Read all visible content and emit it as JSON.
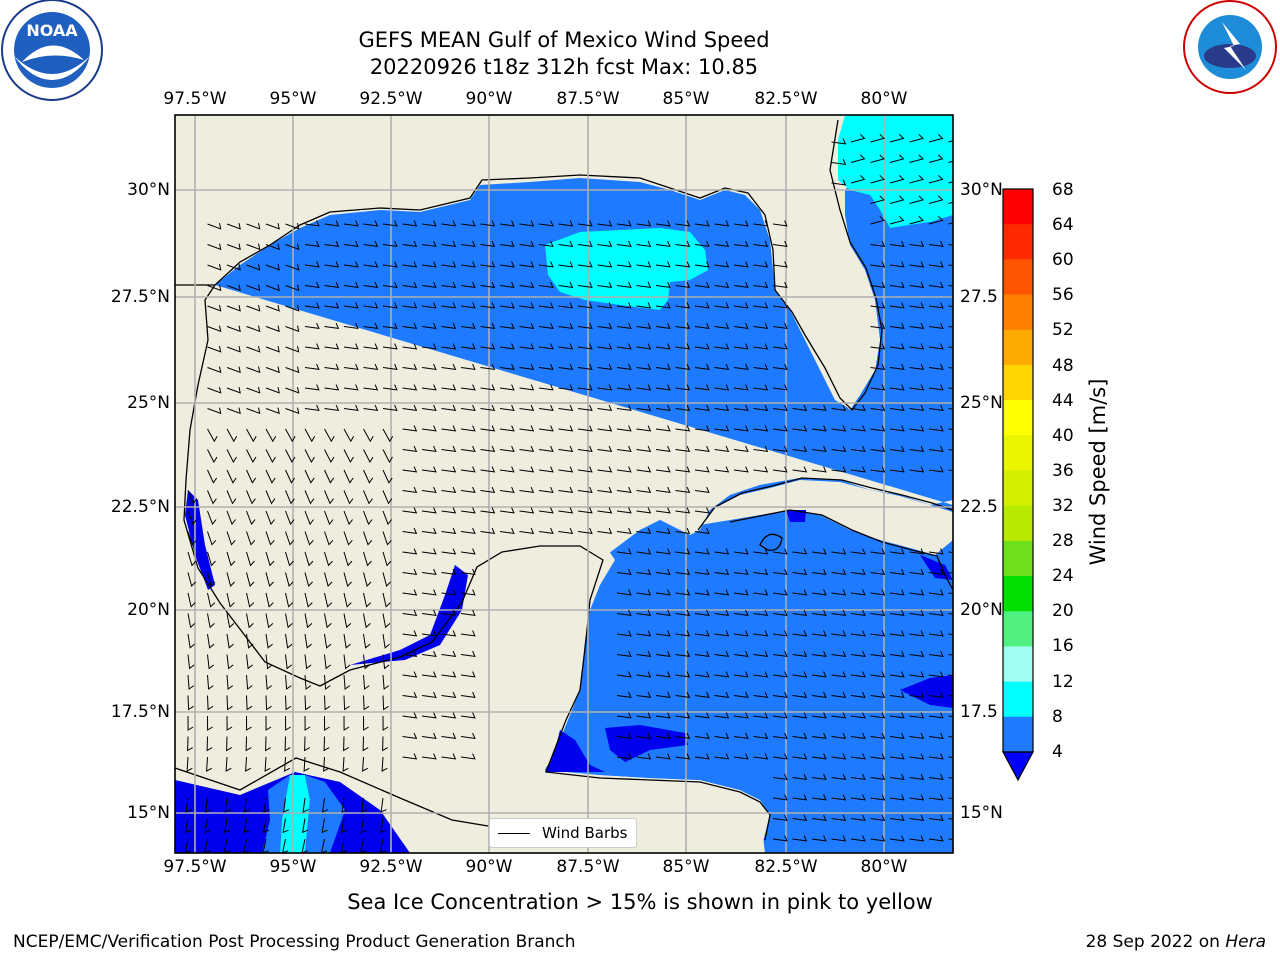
{
  "title": {
    "line1": "GEFS MEAN Gulf of Mexico Wind Speed",
    "line2": "20220926 t18z 312h fcst   Max: 10.85"
  },
  "logos": {
    "left": "NOAA",
    "left_ring_text": "NATIONAL OCEANIC AND ATMOSPHERIC ADMINISTRATION · U.S. DEPARTMENT OF COMMERCE",
    "right_ring_text": "NATIONAL WEATHER SERVICE"
  },
  "axes": {
    "lon_ticks": [
      "97.5°W",
      "95°W",
      "92.5°W",
      "90°W",
      "87.5°W",
      "85°W",
      "82.5°W",
      "80°W"
    ],
    "lat_left_ticks": [
      "30°N",
      "27.5°N",
      "25°N",
      "22.5°N",
      "20°N",
      "17.5°N",
      "15°N"
    ],
    "lat_right_ticks": [
      "30°N",
      "27.5",
      "25°N",
      "22.5",
      "20°N",
      "17.5",
      "15°N"
    ]
  },
  "colorbar": {
    "label": "Wind Speed [m/s]",
    "ticks": [
      "68",
      "64",
      "60",
      "56",
      "52",
      "48",
      "44",
      "40",
      "36",
      "32",
      "28",
      "24",
      "20",
      "16",
      "12",
      "8",
      "4"
    ],
    "colors": [
      "#ff0000",
      "#ff2800",
      "#ff5000",
      "#ff7800",
      "#ffa000",
      "#ffc800",
      "#fff000",
      "#f0f000",
      "#dcf000",
      "#c8f000",
      "#8ce628",
      "#50e650",
      "#00e632",
      "#50f078",
      "#a0fff0",
      "#50ffff",
      "#00ffff",
      "#00f0f0",
      "#0080ff",
      "#0000ff"
    ]
  },
  "legend": {
    "label": "Wind Barbs"
  },
  "colors": {
    "land": "#efedde",
    "ocean_4_8": "#1e7bff",
    "ocean_lt4": "#0000ee",
    "ocean_8_12": "#00ffff",
    "grid": "#b0b0b0"
  },
  "caption": "Sea Ice Concentration > 15% is shown in pink to yellow",
  "footer": {
    "left": "NCEP/EMC/Verification Post Processing Product Generation Branch",
    "right_prefix": "28 Sep 2022 on ",
    "right_host": "Hera"
  }
}
